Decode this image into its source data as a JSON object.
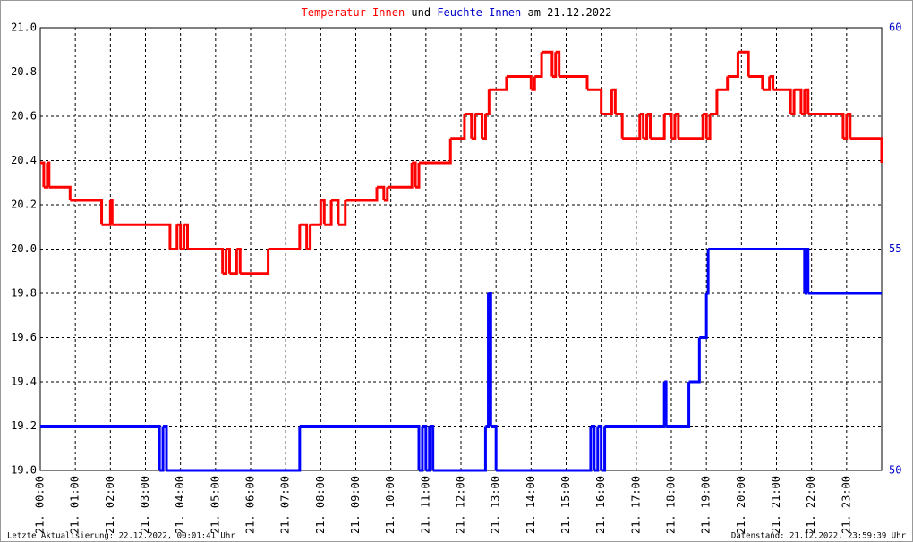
{
  "chart_data": {
    "type": "step-line",
    "title_parts": [
      {
        "text": "Temperatur Innen",
        "color": "#ff0000"
      },
      {
        "text": "und",
        "color": "#000000"
      },
      {
        "text": "Feuchte Innen",
        "color": "#0000cc"
      },
      {
        "text": "am 21.12.2022",
        "color": "#000000"
      }
    ],
    "footer_left": "Letzte Aktualisierung: 22.12.2022, 00:01:41 Uhr",
    "footer_right": "Datenstand: 21.12.2022, 23:59:39 Uhr",
    "xlim": [
      0,
      24
    ],
    "xticks": [
      {
        "value": 0,
        "label": "21. 00:00"
      },
      {
        "value": 1,
        "label": "21. 01:00"
      },
      {
        "value": 2,
        "label": "21. 02:00"
      },
      {
        "value": 3,
        "label": "21. 03:00"
      },
      {
        "value": 4,
        "label": "21. 04:00"
      },
      {
        "value": 5,
        "label": "21. 05:00"
      },
      {
        "value": 6,
        "label": "21. 06:00"
      },
      {
        "value": 7,
        "label": "21. 07:00"
      },
      {
        "value": 8,
        "label": "21. 08:00"
      },
      {
        "value": 9,
        "label": "21. 09:00"
      },
      {
        "value": 10,
        "label": "21. 10:00"
      },
      {
        "value": 11,
        "label": "21. 11:00"
      },
      {
        "value": 12,
        "label": "21. 12:00"
      },
      {
        "value": 13,
        "label": "21. 13:00"
      },
      {
        "value": 14,
        "label": "21. 14:00"
      },
      {
        "value": 15,
        "label": "21. 15:00"
      },
      {
        "value": 16,
        "label": "21. 16:00"
      },
      {
        "value": 17,
        "label": "21. 17:00"
      },
      {
        "value": 18,
        "label": "21. 18:00"
      },
      {
        "value": 19,
        "label": "21. 19:00"
      },
      {
        "value": 20,
        "label": "21. 20:00"
      },
      {
        "value": 21,
        "label": "21. 21:00"
      },
      {
        "value": 22,
        "label": "21. 22:00"
      },
      {
        "value": 23,
        "label": "21. 23:00"
      }
    ],
    "ylim": [
      19.0,
      21.0
    ],
    "yticks": [
      {
        "value": 19.0,
        "label": "19.0"
      },
      19.2,
      19.4,
      19.6,
      19.8,
      {
        "value": 20.0,
        "label": "20.0"
      },
      20.2,
      20.4,
      20.6,
      20.8,
      {
        "value": 21.0,
        "label": "21.0"
      }
    ],
    "y2lim": [
      50,
      60
    ],
    "y2ticks": [
      50,
      55,
      60
    ],
    "grid": true,
    "series": [
      {
        "name": "Temperatur Innen",
        "color": "#ff0000",
        "x": [
          0,
          0.1,
          0.2,
          0.25,
          0.85,
          1.75,
          2.0,
          2.05,
          2.2,
          3.7,
          3.9,
          4.0,
          4.1,
          4.2,
          5.2,
          5.3,
          5.4,
          5.6,
          5.7,
          6.5,
          7.4,
          7.6,
          7.7,
          8.0,
          8.1,
          8.3,
          8.5,
          8.7,
          9.6,
          9.8,
          9.9,
          10.6,
          10.7,
          10.8,
          11.7,
          12.1,
          12.3,
          12.4,
          12.6,
          12.7,
          12.8,
          13.3,
          14.0,
          14.1,
          14.3,
          14.6,
          14.7,
          14.8,
          15.6,
          16.0,
          16.3,
          16.4,
          16.6,
          17.1,
          17.2,
          17.3,
          17.4,
          17.8,
          18.0,
          18.1,
          18.2,
          18.9,
          19.0,
          19.1,
          19.3,
          19.6,
          19.9,
          20.2,
          20.6,
          20.8,
          20.9,
          21.4,
          21.5,
          21.7,
          21.8,
          21.9,
          22.9,
          23.0,
          23.1,
          24.0
        ],
        "values": [
          20.39,
          20.28,
          20.39,
          20.28,
          20.22,
          20.11,
          20.22,
          20.11,
          20.11,
          20.0,
          20.11,
          20.0,
          20.11,
          20.0,
          19.89,
          20.0,
          19.89,
          20.0,
          19.89,
          20.0,
          20.11,
          20.0,
          20.11,
          20.22,
          20.11,
          20.22,
          20.11,
          20.22,
          20.28,
          20.22,
          20.28,
          20.39,
          20.28,
          20.39,
          20.5,
          20.61,
          20.5,
          20.61,
          20.5,
          20.61,
          20.72,
          20.78,
          20.72,
          20.78,
          20.89,
          20.78,
          20.89,
          20.78,
          20.72,
          20.61,
          20.72,
          20.61,
          20.5,
          20.61,
          20.5,
          20.61,
          20.5,
          20.61,
          20.5,
          20.61,
          20.5,
          20.61,
          20.5,
          20.61,
          20.72,
          20.78,
          20.89,
          20.78,
          20.72,
          20.78,
          20.72,
          20.61,
          20.72,
          20.61,
          20.72,
          20.61,
          20.5,
          20.61,
          20.5,
          20.39
        ]
      },
      {
        "name": "Feuchte Innen",
        "color": "#0000ff",
        "axis": "y2",
        "x": [
          0,
          3.4,
          3.5,
          3.6,
          7.4,
          10.8,
          10.9,
          11.0,
          11.1,
          11.2,
          12.7,
          12.78,
          12.85,
          13.0,
          15.7,
          15.8,
          15.9,
          16.0,
          16.1,
          17.8,
          17.85,
          18.5,
          18.8,
          19.0,
          19.05,
          21.8,
          21.85,
          21.9,
          24.0
        ],
        "values": [
          51,
          50,
          51,
          50,
          51,
          50,
          51,
          50,
          51,
          50,
          51,
          54,
          51,
          50,
          51,
          50,
          51,
          50,
          51,
          52,
          51,
          52,
          53,
          54,
          55,
          54,
          55,
          54,
          54
        ]
      }
    ]
  }
}
